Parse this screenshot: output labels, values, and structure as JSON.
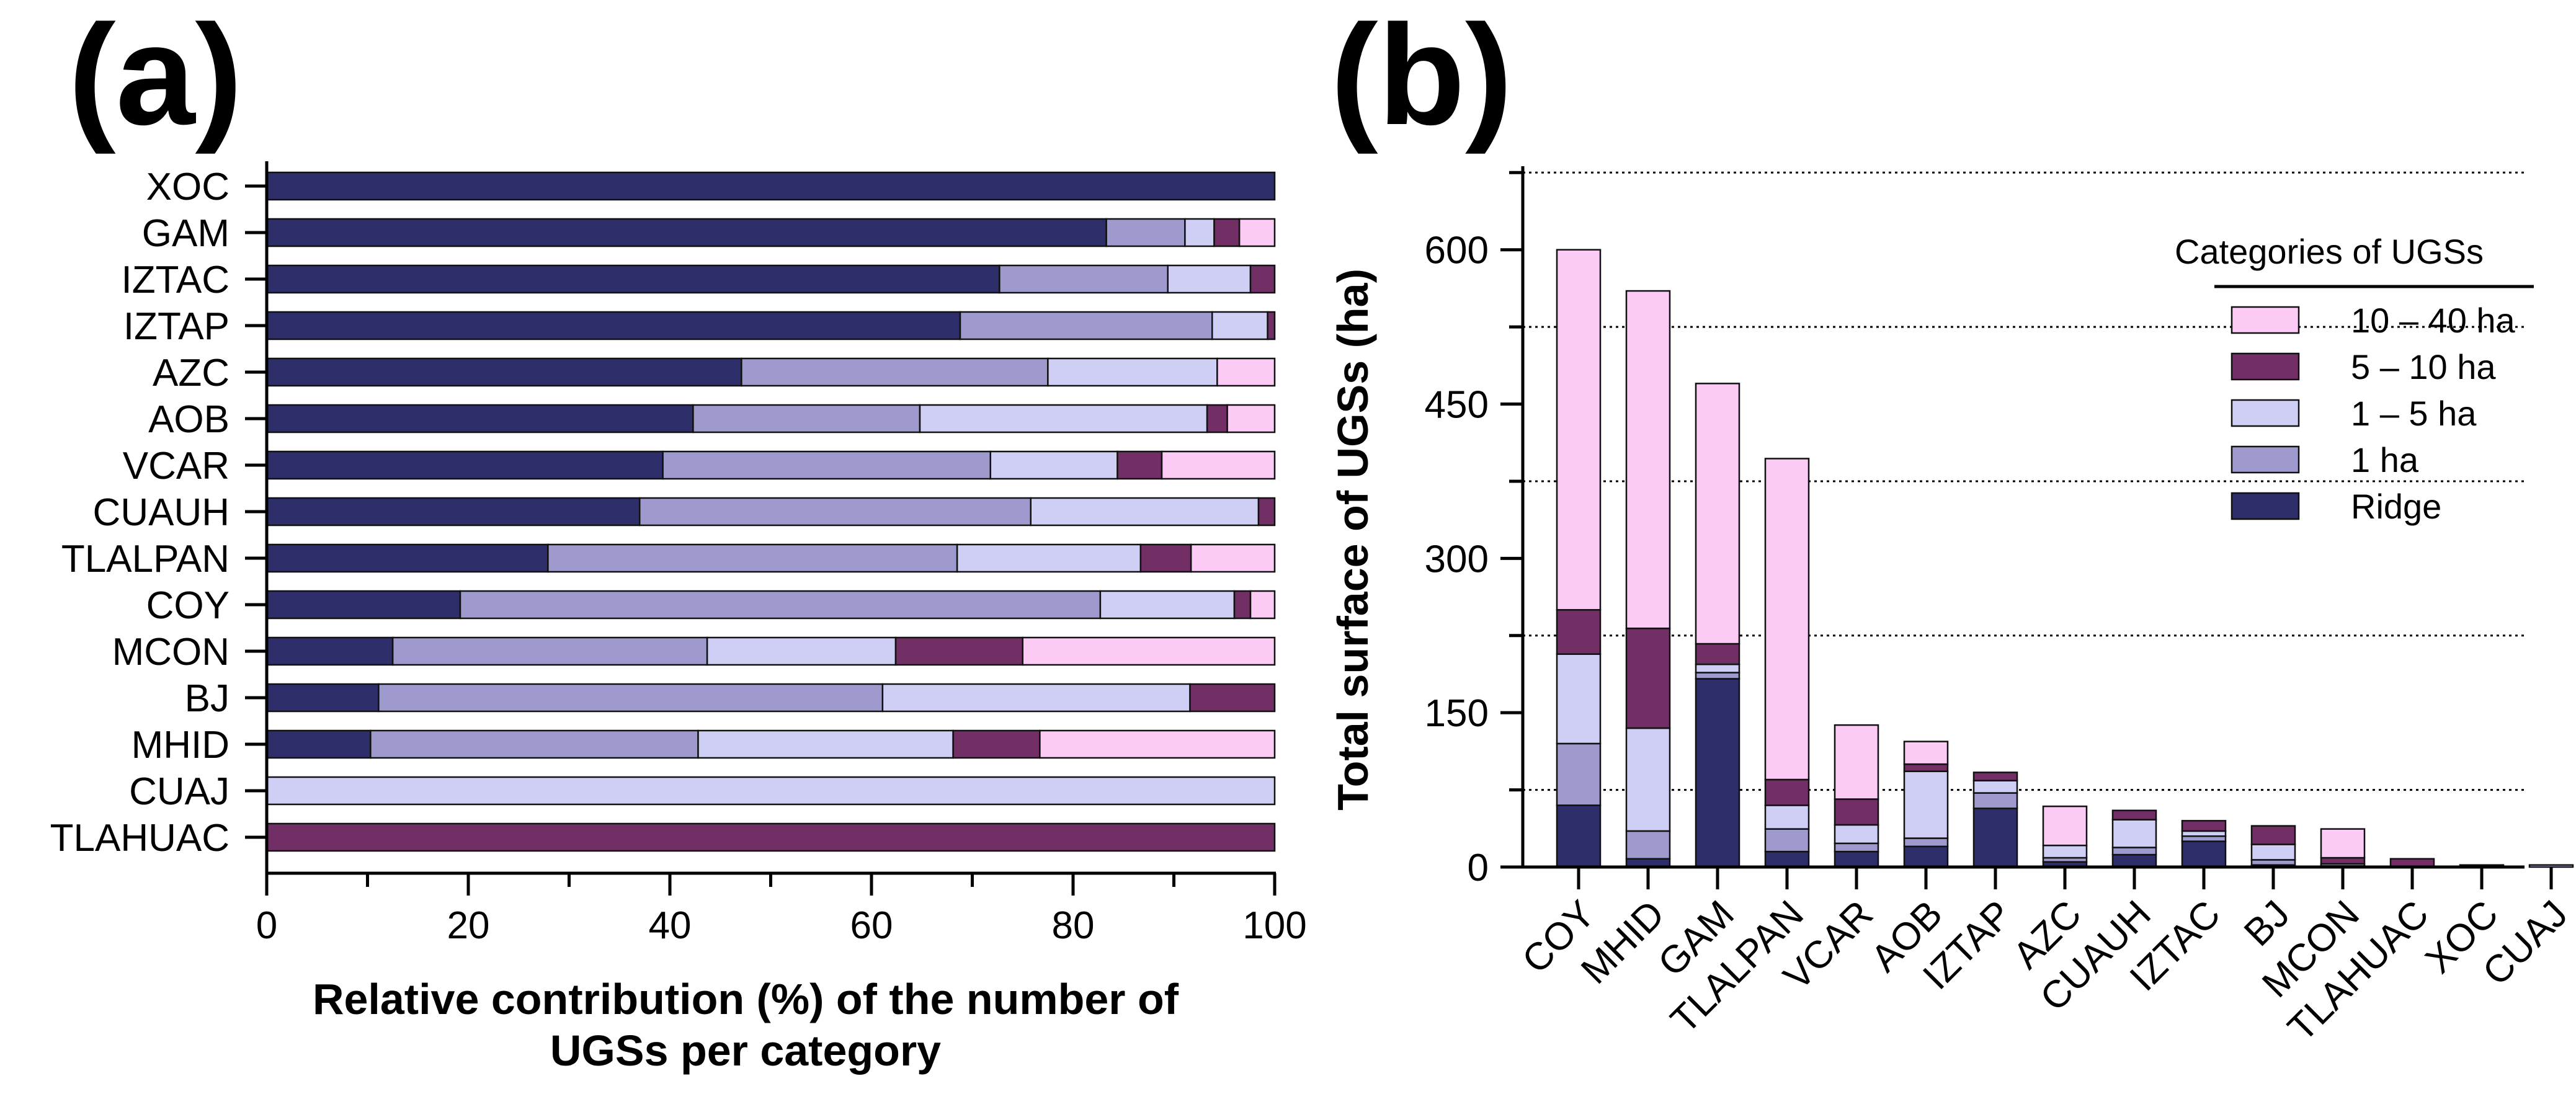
{
  "colors": {
    "Ridge": "#2e2e6b",
    "1 ha": "#9e9acd",
    "1 – 5 ha": "#cfcff5",
    "5 – 10 ha": "#722f66",
    "10 – 40 ha": "#fbcaf5"
  },
  "chart_data": [
    {
      "panel": "(a)",
      "type": "bar",
      "orientation": "horizontal",
      "stacked": true,
      "xlabel": [
        "Relative contribution (%) of the number of",
        "UGSs per category"
      ],
      "xlim": [
        0,
        100
      ],
      "xticks": [
        0,
        20,
        40,
        60,
        80,
        100
      ],
      "categories": [
        "XOC",
        "GAM",
        "IZTAC",
        "IZTAP",
        "AZC",
        "AOB",
        "VCAR",
        "CUAUH",
        "TLALPAN",
        "COY",
        "MCON",
        "BJ",
        "MHID",
        "CUAJ",
        "TLAHUAC"
      ],
      "series": [
        {
          "name": "Ridge",
          "values": [
            100,
            83.3,
            72.7,
            68.8,
            47.1,
            42.3,
            39.3,
            37.0,
            27.9,
            19.2,
            12.5,
            11.1,
            10.3,
            0,
            0
          ]
        },
        {
          "name": "1 ha",
          "values": [
            0,
            7.8,
            16.7,
            25.0,
            30.4,
            22.5,
            32.5,
            38.8,
            40.6,
            63.5,
            31.2,
            50.0,
            32.5,
            0,
            0
          ]
        },
        {
          "name": "1 – 5 ha",
          "values": [
            0,
            2.9,
            8.2,
            5.5,
            16.8,
            28.5,
            12.6,
            22.6,
            18.2,
            13.3,
            18.7,
            30.5,
            25.3,
            100,
            0
          ]
        },
        {
          "name": "5 – 10 ha",
          "values": [
            0,
            2.5,
            2.4,
            0.7,
            0,
            2.0,
            4.4,
            1.6,
            5.0,
            1.6,
            12.6,
            8.4,
            8.6,
            0,
            100
          ]
        },
        {
          "name": "10 – 40 ha",
          "values": [
            0,
            3.5,
            0,
            0,
            5.7,
            4.7,
            11.2,
            0,
            8.3,
            2.4,
            25.0,
            0,
            23.3,
            0,
            0
          ]
        }
      ]
    },
    {
      "panel": "(b)",
      "type": "bar",
      "orientation": "vertical",
      "stacked": true,
      "ylabel": "Total surface of UGSs (ha)",
      "ylim": [
        0,
        680
      ],
      "yticks": [
        0,
        150,
        300,
        450,
        600
      ],
      "gridlines_dotted": [
        75,
        225,
        375,
        525,
        675
      ],
      "categories": [
        "COY",
        "MHID",
        "GAM",
        "TLALPAN",
        "VCAR",
        "AOB",
        "IZTAP",
        "AZC",
        "CUAUH",
        "IZTAC",
        "BJ",
        "MCON",
        "TLAHUAC",
        "XOC",
        "CUAJ"
      ],
      "series": [
        {
          "name": "Ridge",
          "values": [
            60,
            8,
            183,
            15,
            15,
            20,
            57,
            5,
            12,
            25,
            2,
            0,
            0,
            2,
            0
          ]
        },
        {
          "name": "1 ha",
          "values": [
            60,
            27,
            6,
            22,
            8,
            8,
            15,
            4,
            7,
            5,
            5,
            1,
            0,
            0,
            0
          ]
        },
        {
          "name": "1 – 5 ha",
          "values": [
            87,
            100,
            8,
            23,
            18,
            65,
            12,
            12,
            27,
            5,
            15,
            2,
            0,
            0,
            2
          ]
        },
        {
          "name": "5 – 10 ha",
          "values": [
            43,
            97,
            20,
            25,
            25,
            7,
            8,
            0,
            9,
            10,
            18,
            6,
            8,
            0,
            0
          ]
        },
        {
          "name": "10 – 40 ha",
          "values": [
            350,
            328,
            253,
            312,
            72,
            22,
            0,
            38,
            0,
            0,
            0,
            28,
            0,
            0,
            0
          ]
        }
      ],
      "legend": {
        "title": "Categories of UGSs",
        "placement": "top-right",
        "order": [
          "10 – 40 ha",
          "5 – 10 ha",
          "1 – 5 ha",
          "1 ha",
          "Ridge"
        ]
      }
    }
  ]
}
